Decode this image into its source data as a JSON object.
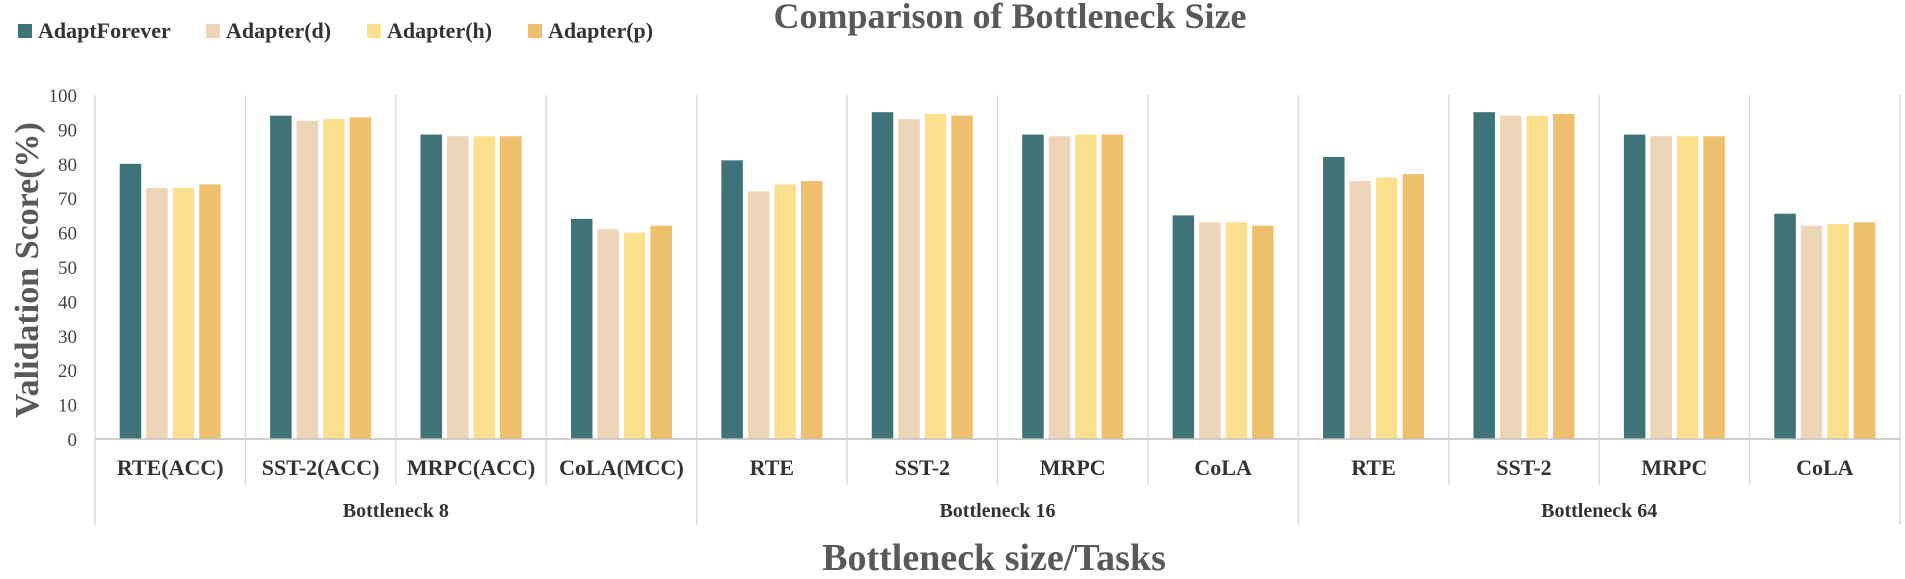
{
  "chart_data": {
    "type": "bar",
    "title": "Comparison of Bottleneck Size",
    "xlabel": "Bottleneck size/Tasks",
    "ylabel": "Validation Score(%)",
    "ylim": [
      0,
      100
    ],
    "yticks": [
      0,
      10,
      20,
      30,
      40,
      50,
      60,
      70,
      80,
      90,
      100
    ],
    "grid": false,
    "legend_position": "top-left",
    "groups": [
      {
        "label": "Bottleneck 8",
        "categories": [
          "RTE(ACC)",
          "SST-2(ACC)",
          "MRPC(ACC)",
          "CoLA(MCC)"
        ]
      },
      {
        "label": "Bottleneck 16",
        "categories": [
          "RTE",
          "SST-2",
          "MRPC",
          "CoLA"
        ]
      },
      {
        "label": "Bottleneck 64",
        "categories": [
          "RTE",
          "SST-2",
          "MRPC",
          "CoLA"
        ]
      }
    ],
    "series": [
      {
        "name": "AdaptForever",
        "color": "#3F7377",
        "values": [
          80,
          94,
          88.5,
          64,
          81,
          95,
          88.5,
          65,
          82,
          95,
          88.5,
          65.5
        ]
      },
      {
        "name": "Adapter(d)",
        "color": "#EDD5B8",
        "values": [
          73,
          92.5,
          88,
          61,
          72,
          93,
          88,
          63,
          75,
          94,
          88,
          62
        ]
      },
      {
        "name": "Adapter(h)",
        "color": "#FCDF8F",
        "values": [
          73,
          93,
          88,
          60,
          74,
          94.5,
          88.5,
          63,
          76,
          94,
          88,
          62.5
        ]
      },
      {
        "name": "Adapter(p)",
        "color": "#EEC06D",
        "values": [
          74,
          93.5,
          88,
          62,
          75,
          94,
          88.5,
          62,
          77,
          94.5,
          88,
          63
        ]
      }
    ]
  }
}
